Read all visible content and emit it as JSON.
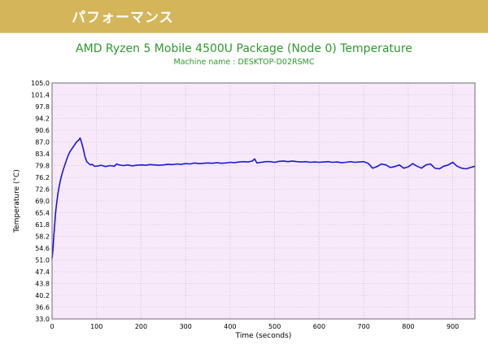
{
  "header": {
    "title": "パフォーマンス"
  },
  "colors": {
    "header_band": "#d5b55a",
    "title_green": "#2e9a2e",
    "plot_background": "#f7e8fa",
    "grid": "#b8a8c0",
    "series": "#1a1ad8"
  },
  "chart_data": {
    "type": "line",
    "title": "AMD Ryzen 5 Mobile 4500U Package (Node 0) Temperature",
    "subtitle": "Machine name : DESKTOP-D02RSMC",
    "xlabel": "Time (seconds)",
    "ylabel": "Temperature (°C)",
    "xlim": [
      0,
      950
    ],
    "ylim": [
      33.0,
      105.0
    ],
    "grid": true,
    "xticks": [
      0,
      100,
      200,
      300,
      400,
      500,
      600,
      700,
      800,
      900
    ],
    "yticks": [
      "33.0",
      "36.6",
      "40.2",
      "43.8",
      "47.4",
      "51.0",
      "54.6",
      "58.2",
      "61.8",
      "65.4",
      "69.0",
      "72.6",
      "76.2",
      "79.8",
      "83.4",
      "87.0",
      "90.6",
      "94.2",
      "97.8",
      "101.4",
      "105.0"
    ],
    "series": [
      {
        "name": "",
        "x": [
          0,
          2,
          4,
          6,
          8,
          10,
          13,
          16,
          20,
          25,
          30,
          35,
          40,
          45,
          50,
          55,
          60,
          63,
          66,
          70,
          74,
          78,
          82,
          86,
          90,
          95,
          100,
          110,
          120,
          130,
          140,
          145,
          150,
          160,
          170,
          180,
          190,
          200,
          210,
          220,
          230,
          240,
          250,
          260,
          270,
          280,
          290,
          300,
          310,
          320,
          330,
          340,
          350,
          360,
          370,
          380,
          390,
          400,
          410,
          420,
          430,
          440,
          450,
          455,
          460,
          470,
          480,
          490,
          500,
          510,
          520,
          530,
          540,
          550,
          560,
          570,
          580,
          590,
          600,
          610,
          620,
          630,
          640,
          650,
          660,
          670,
          680,
          690,
          700,
          710,
          720,
          730,
          740,
          750,
          760,
          770,
          780,
          790,
          800,
          810,
          820,
          830,
          840,
          850,
          860,
          870,
          880,
          890,
          900,
          910,
          920,
          930,
          940,
          950
        ],
        "y": [
          51.5,
          54.0,
          58.5,
          62.0,
          65.5,
          68.0,
          71.0,
          73.5,
          76.0,
          78.5,
          80.5,
          82.5,
          84.0,
          85.0,
          86.0,
          87.0,
          87.6,
          88.2,
          87.0,
          85.0,
          82.5,
          81.0,
          80.5,
          80.0,
          80.2,
          79.6,
          79.6,
          79.9,
          79.5,
          79.8,
          79.6,
          80.3,
          80.0,
          79.8,
          80.0,
          79.7,
          79.9,
          80.0,
          79.9,
          80.1,
          80.0,
          79.9,
          80.0,
          80.2,
          80.1,
          80.3,
          80.2,
          80.4,
          80.3,
          80.6,
          80.4,
          80.5,
          80.6,
          80.5,
          80.7,
          80.5,
          80.6,
          80.8,
          80.7,
          80.9,
          81.0,
          80.9,
          81.2,
          81.8,
          80.6,
          80.8,
          81.0,
          81.0,
          80.8,
          81.1,
          81.2,
          81.0,
          81.2,
          81.0,
          80.9,
          81.0,
          80.8,
          80.9,
          80.8,
          80.9,
          81.0,
          80.8,
          80.9,
          80.7,
          80.8,
          81.0,
          80.8,
          80.9,
          81.0,
          80.5,
          79.0,
          79.5,
          80.3,
          80.0,
          79.2,
          79.5,
          80.0,
          79.0,
          79.4,
          80.4,
          79.6,
          79.0,
          80.0,
          80.3,
          79.0,
          78.8,
          79.6,
          80.0,
          80.8,
          79.6,
          79.0,
          78.8,
          79.2,
          79.6
        ]
      }
    ]
  }
}
